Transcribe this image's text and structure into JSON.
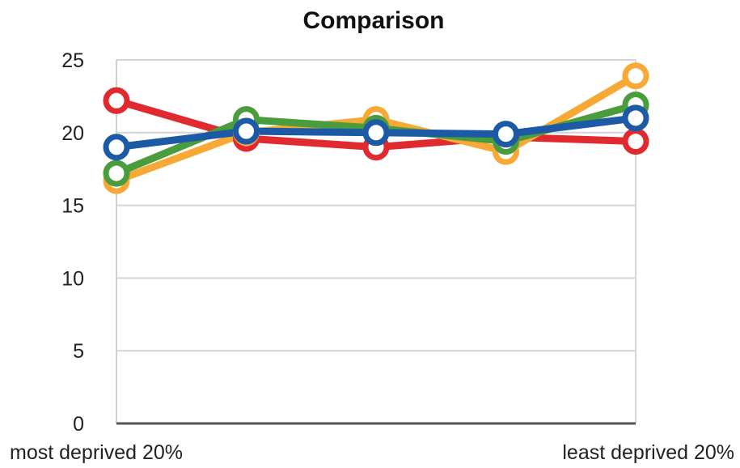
{
  "chart_data": {
    "type": "line",
    "title": "Comparison",
    "xlabel": "",
    "ylabel": "",
    "categories": [
      "most deprived 20%",
      "",
      "",
      "",
      "least deprived 20%"
    ],
    "ylim": [
      0,
      25
    ],
    "yticks": [
      0,
      5,
      10,
      15,
      20,
      25
    ],
    "grid": true,
    "legend": "none",
    "series": [
      {
        "color": "#e02a2f",
        "values": [
          22.2,
          19.6,
          19.0,
          19.7,
          19.4
        ]
      },
      {
        "color": "#f7a835",
        "values": [
          16.7,
          20.0,
          20.9,
          18.7,
          23.9
        ]
      },
      {
        "color": "#4a9d3c",
        "values": [
          17.2,
          20.9,
          20.3,
          19.4,
          21.9
        ]
      },
      {
        "color": "#1c5aa5",
        "values": [
          19.0,
          20.1,
          20.0,
          19.9,
          21.0
        ]
      }
    ]
  }
}
